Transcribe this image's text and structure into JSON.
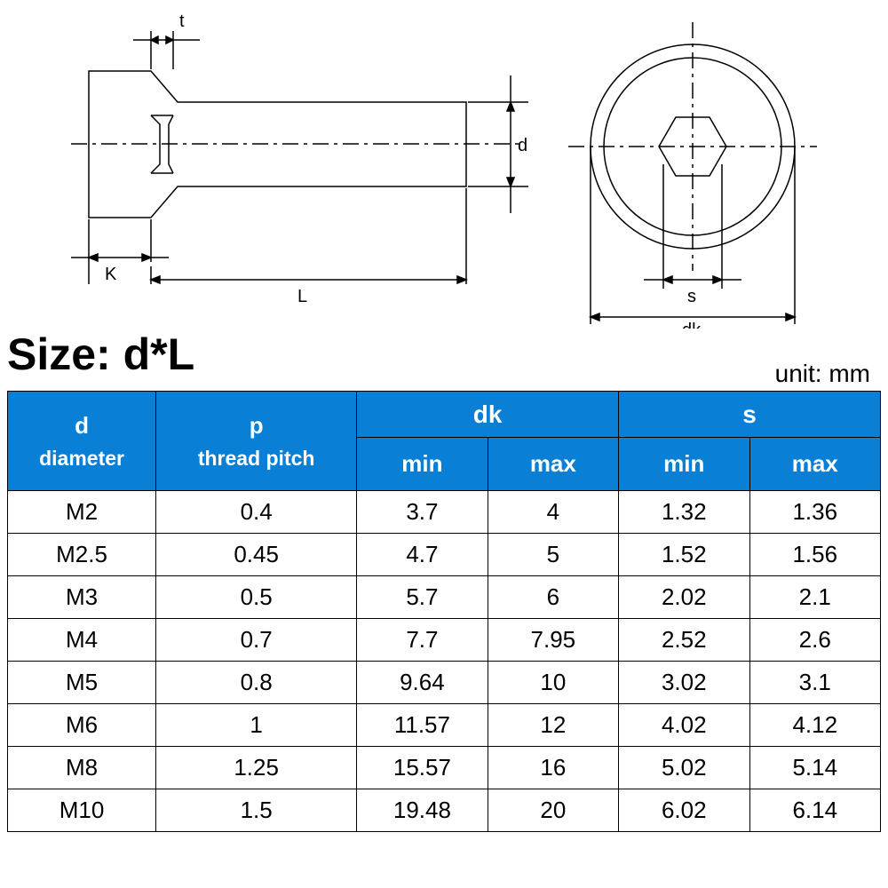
{
  "diagram": {
    "labels": {
      "t": "t",
      "d": "d",
      "K": "K",
      "L": "L",
      "s": "s",
      "dk": "dk"
    },
    "stroke": "#000000",
    "stroke_width": 1.2,
    "fill": "#ffffff"
  },
  "size_label": "Size: d*L",
  "unit_label": "unit: mm",
  "table": {
    "header_bg": "#0a7fd6",
    "header_fg": "#ffffff",
    "border_color": "#000000",
    "columns": [
      {
        "key": "d",
        "label_top": "d",
        "label_bottom": "diameter",
        "span": 1
      },
      {
        "key": "p",
        "label_top": "p",
        "label_bottom": "thread pitch",
        "span": 1
      },
      {
        "key": "dk",
        "label_top": "dk",
        "sub": [
          "min",
          "max"
        ],
        "span": 2
      },
      {
        "key": "s",
        "label_top": "s",
        "sub": [
          "min",
          "max"
        ],
        "span": 2
      }
    ],
    "rows": [
      [
        "M2",
        "0.4",
        "3.7",
        "4",
        "1.32",
        "1.36"
      ],
      [
        "M2.5",
        "0.45",
        "4.7",
        "5",
        "1.52",
        "1.56"
      ],
      [
        "M3",
        "0.5",
        "5.7",
        "6",
        "2.02",
        "2.1"
      ],
      [
        "M4",
        "0.7",
        "7.7",
        "7.95",
        "2.52",
        "2.6"
      ],
      [
        "M5",
        "0.8",
        "9.64",
        "10",
        "3.02",
        "3.1"
      ],
      [
        "M6",
        "1",
        "11.57",
        "12",
        "4.02",
        "4.12"
      ],
      [
        "M8",
        "1.25",
        "15.57",
        "16",
        "5.02",
        "5.14"
      ],
      [
        "M10",
        "1.5",
        "19.48",
        "20",
        "6.02",
        "6.14"
      ]
    ]
  }
}
